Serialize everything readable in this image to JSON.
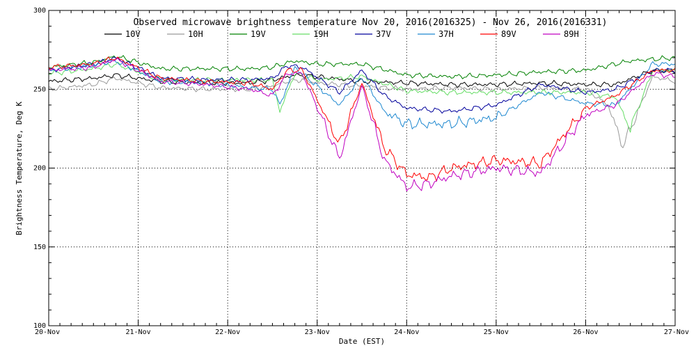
{
  "chart_data": {
    "type": "line",
    "title": "Observed microwave brightness temperature Nov 20, 2016(2016325) - Nov 26, 2016(2016331)",
    "xlabel": "Date (EST)",
    "ylabel": "Brightness Temperature, Deg K",
    "ylim": [
      100,
      300
    ],
    "y_ticks": [
      100,
      150,
      200,
      250,
      300
    ],
    "xlim": [
      "2016-11-20",
      "2016-11-27"
    ],
    "x_ticks": [
      "20-Nov",
      "21-Nov",
      "22-Nov",
      "23-Nov",
      "24-Nov",
      "25-Nov",
      "26-Nov",
      "27-Nov"
    ],
    "grid": true,
    "legend_position": "top",
    "series": [
      {
        "name": "10V",
        "color": "#000000",
        "x": [
          "2016-11-20 00:00",
          "2016-11-20 12:00",
          "2016-11-20 18:00",
          "2016-11-21 06:00",
          "2016-11-21 18:00",
          "2016-11-22 06:00",
          "2016-11-22 12:00",
          "2016-11-22 18:00",
          "2016-11-23 00:00",
          "2016-11-23 12:00",
          "2016-11-24 00:00",
          "2016-11-24 12:00",
          "2016-11-25 00:00",
          "2016-11-25 12:00",
          "2016-11-26 00:00",
          "2016-11-26 08:00",
          "2016-11-26 18:00",
          "2016-11-27 00:00"
        ],
        "y": [
          255,
          257,
          259,
          255,
          254,
          254,
          256,
          259,
          258,
          255,
          254,
          253,
          253,
          254,
          253,
          253,
          262,
          261
        ]
      },
      {
        "name": "10H",
        "color": "#999999",
        "x": [
          "2016-11-20 00:00",
          "2016-11-20 12:00",
          "2016-11-20 18:00",
          "2016-11-21 06:00",
          "2016-11-21 18:00",
          "2016-11-22 06:00",
          "2016-11-22 12:00",
          "2016-11-22 16:00",
          "2016-11-22 20:00",
          "2016-11-23 00:00",
          "2016-11-23 12:00",
          "2016-11-24 00:00",
          "2016-11-24 12:00",
          "2016-11-25 00:00",
          "2016-11-25 12:00",
          "2016-11-26 00:00",
          "2016-11-26 06:00",
          "2016-11-26 10:00",
          "2016-11-26 18:00",
          "2016-11-27 00:00"
        ],
        "y": [
          250,
          253,
          257,
          251,
          250,
          250,
          252,
          255,
          256,
          254,
          252,
          250,
          251,
          250,
          251,
          250,
          240,
          214,
          258,
          255
        ]
      },
      {
        "name": "19V",
        "color": "#008000",
        "x": [
          "2016-11-20 00:00",
          "2016-11-20 12:00",
          "2016-11-20 18:00",
          "2016-11-21 06:00",
          "2016-11-21 18:00",
          "2016-11-22 06:00",
          "2016-11-22 12:00",
          "2016-11-22 18:00",
          "2016-11-23 00:00",
          "2016-11-23 12:00",
          "2016-11-24 00:00",
          "2016-11-24 12:00",
          "2016-11-25 00:00",
          "2016-11-25 12:00",
          "2016-11-26 00:00",
          "2016-11-26 12:00",
          "2016-11-27 00:00"
        ],
        "y": [
          264,
          267,
          271,
          263,
          263,
          263,
          264,
          268,
          266,
          266,
          259,
          258,
          259,
          261,
          262,
          268,
          270
        ]
      },
      {
        "name": "19H",
        "color": "#66dd66",
        "x": [
          "2016-11-20 00:00",
          "2016-11-20 12:00",
          "2016-11-20 18:00",
          "2016-11-21 06:00",
          "2016-11-21 18:00",
          "2016-11-22 06:00",
          "2016-11-22 12:00",
          "2016-11-22 14:00",
          "2016-11-22 18:00",
          "2016-11-23 00:00",
          "2016-11-23 12:00",
          "2016-11-24 00:00",
          "2016-11-24 12:00",
          "2016-11-25 00:00",
          "2016-11-25 12:00",
          "2016-11-26 00:00",
          "2016-11-26 08:00",
          "2016-11-26 12:00",
          "2016-11-26 18:00",
          "2016-11-27 00:00"
        ],
        "y": [
          260,
          263,
          266,
          256,
          256,
          256,
          256,
          236,
          260,
          256,
          258,
          249,
          248,
          248,
          248,
          248,
          245,
          225,
          262,
          262
        ]
      },
      {
        "name": "37V",
        "color": "#00009c",
        "x": [
          "2016-11-20 00:00",
          "2016-11-20 12:00",
          "2016-11-20 18:00",
          "2016-11-21 06:00",
          "2016-11-21 18:00",
          "2016-11-22 06:00",
          "2016-11-22 12:00",
          "2016-11-22 16:00",
          "2016-11-22 20:00",
          "2016-11-23 06:00",
          "2016-11-23 12:00",
          "2016-11-23 18:00",
          "2016-11-24 00:00",
          "2016-11-24 12:00",
          "2016-11-25 00:00",
          "2016-11-25 12:00",
          "2016-11-26 00:00",
          "2016-11-26 08:00",
          "2016-11-26 18:00",
          "2016-11-27 00:00"
        ],
        "y": [
          262,
          266,
          270,
          257,
          256,
          256,
          257,
          265,
          264,
          248,
          262,
          246,
          238,
          236,
          240,
          253,
          248,
          250,
          262,
          262
        ]
      },
      {
        "name": "37H",
        "color": "#1e88d0",
        "x": [
          "2016-11-20 00:00",
          "2016-11-20 12:00",
          "2016-11-20 18:00",
          "2016-11-21 06:00",
          "2016-11-21 18:00",
          "2016-11-22 06:00",
          "2016-11-22 12:00",
          "2016-11-22 14:00",
          "2016-11-22 18:00",
          "2016-11-23 06:00",
          "2016-11-23 12:00",
          "2016-11-23 18:00",
          "2016-11-24 00:00",
          "2016-11-24 12:00",
          "2016-11-25 00:00",
          "2016-11-25 12:00",
          "2016-11-26 00:00",
          "2016-11-26 08:00",
          "2016-11-26 18:00",
          "2016-11-27 00:00"
        ],
        "y": [
          262,
          265,
          268,
          255,
          254,
          251,
          250,
          240,
          264,
          240,
          258,
          236,
          228,
          228,
          232,
          248,
          241,
          240,
          266,
          266
        ]
      },
      {
        "name": "89V",
        "color": "#ff0000",
        "x": [
          "2016-11-20 00:00",
          "2016-11-20 12:00",
          "2016-11-20 18:00",
          "2016-11-21 06:00",
          "2016-11-21 18:00",
          "2016-11-22 06:00",
          "2016-11-22 12:00",
          "2016-11-22 16:00",
          "2016-11-22 20:00",
          "2016-11-23 06:00",
          "2016-11-23 12:00",
          "2016-11-23 18:00",
          "2016-11-24 00:00",
          "2016-11-24 06:00",
          "2016-11-24 12:00",
          "2016-11-25 00:00",
          "2016-11-25 12:00",
          "2016-11-26 00:00",
          "2016-11-26 08:00",
          "2016-11-26 18:00",
          "2016-11-27 00:00"
        ],
        "y": [
          264,
          266,
          270,
          257,
          255,
          254,
          250,
          262,
          262,
          215,
          254,
          213,
          196,
          194,
          200,
          205,
          203,
          238,
          246,
          262,
          262
        ]
      },
      {
        "name": "89H",
        "color": "#c000c0",
        "x": [
          "2016-11-20 00:00",
          "2016-11-20 12:00",
          "2016-11-20 18:00",
          "2016-11-21 06:00",
          "2016-11-21 18:00",
          "2016-11-22 06:00",
          "2016-11-22 12:00",
          "2016-11-22 16:00",
          "2016-11-22 20:00",
          "2016-11-23 06:00",
          "2016-11-23 12:00",
          "2016-11-23 18:00",
          "2016-11-24 00:00",
          "2016-11-24 06:00",
          "2016-11-24 12:00",
          "2016-11-25 00:00",
          "2016-11-25 12:00",
          "2016-11-26 00:00",
          "2016-11-26 08:00",
          "2016-11-26 18:00",
          "2016-11-27 00:00"
        ],
        "y": [
          262,
          264,
          269,
          255,
          253,
          250,
          246,
          260,
          260,
          206,
          252,
          205,
          188,
          190,
          195,
          200,
          197,
          234,
          240,
          260,
          258
        ]
      }
    ]
  }
}
